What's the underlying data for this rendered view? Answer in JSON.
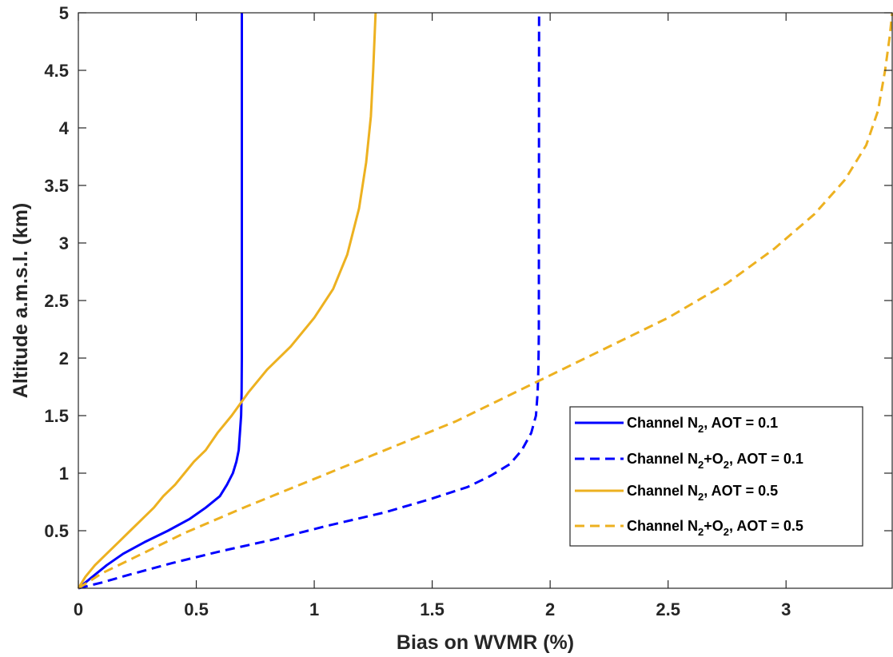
{
  "chart_data": {
    "type": "line",
    "title": "",
    "xlabel": "Bias on WVMR (%)",
    "ylabel": "Altitude a.m.s.l. (km)",
    "xlim": [
      0,
      3.45
    ],
    "ylim": [
      0,
      5
    ],
    "xticks": [
      0,
      0.5,
      1,
      1.5,
      2,
      2.5,
      3
    ],
    "xtick_labels": [
      "0",
      "0.5",
      "1",
      "1.5",
      "2",
      "2.5",
      "3"
    ],
    "yticks": [
      0.5,
      1,
      1.5,
      2,
      2.5,
      3,
      3.5,
      4,
      4.5,
      5
    ],
    "ytick_labels": [
      "0.5",
      "1",
      "1.5",
      "2",
      "2.5",
      "3",
      "3.5",
      "4",
      "4.5",
      "5"
    ],
    "grid": false,
    "legend_position": "lower-right",
    "series": [
      {
        "label_parts": {
          "prefix": "Channel N",
          "sub1": "2",
          "middle": "",
          "sub2": "",
          "suffix": ", AOT = 0.1"
        },
        "color": "#0000ff",
        "dash": "solid",
        "points": [
          [
            0.0,
            0.0
          ],
          [
            0.06,
            0.1
          ],
          [
            0.12,
            0.2
          ],
          [
            0.19,
            0.3
          ],
          [
            0.28,
            0.4
          ],
          [
            0.38,
            0.5
          ],
          [
            0.47,
            0.6
          ],
          [
            0.54,
            0.7
          ],
          [
            0.6,
            0.8
          ],
          [
            0.63,
            0.9
          ],
          [
            0.655,
            1.0
          ],
          [
            0.67,
            1.1
          ],
          [
            0.68,
            1.2
          ],
          [
            0.685,
            1.35
          ],
          [
            0.69,
            1.5
          ],
          [
            0.692,
            1.7
          ],
          [
            0.693,
            2.0
          ],
          [
            0.693,
            5.0
          ]
        ]
      },
      {
        "label_parts": {
          "prefix": "Channel N",
          "sub1": "2",
          "middle": "+O",
          "sub2": "2",
          "suffix": ", AOT = 0.1"
        },
        "color": "#0000ff",
        "dash": "dashed",
        "points": [
          [
            0.0,
            0.0
          ],
          [
            0.1,
            0.05
          ],
          [
            0.22,
            0.12
          ],
          [
            0.4,
            0.22
          ],
          [
            0.6,
            0.32
          ],
          [
            0.82,
            0.42
          ],
          [
            1.05,
            0.54
          ],
          [
            1.3,
            0.66
          ],
          [
            1.5,
            0.78
          ],
          [
            1.65,
            0.88
          ],
          [
            1.75,
            0.98
          ],
          [
            1.83,
            1.08
          ],
          [
            1.88,
            1.2
          ],
          [
            1.92,
            1.35
          ],
          [
            1.94,
            1.5
          ],
          [
            1.947,
            1.7
          ],
          [
            1.95,
            1.9
          ],
          [
            1.952,
            2.2
          ],
          [
            1.953,
            5.0
          ]
        ]
      },
      {
        "label_parts": {
          "prefix": "Channel N",
          "sub1": "2",
          "middle": "",
          "sub2": "",
          "suffix": ", AOT = 0.5"
        },
        "color": "#edb120",
        "dash": "solid",
        "points": [
          [
            0.0,
            0.0
          ],
          [
            0.03,
            0.1
          ],
          [
            0.07,
            0.2
          ],
          [
            0.12,
            0.3
          ],
          [
            0.17,
            0.4
          ],
          [
            0.22,
            0.5
          ],
          [
            0.27,
            0.6
          ],
          [
            0.32,
            0.7
          ],
          [
            0.36,
            0.8
          ],
          [
            0.41,
            0.9
          ],
          [
            0.45,
            1.0
          ],
          [
            0.49,
            1.1
          ],
          [
            0.54,
            1.2
          ],
          [
            0.59,
            1.35
          ],
          [
            0.65,
            1.5
          ],
          [
            0.72,
            1.7
          ],
          [
            0.8,
            1.9
          ],
          [
            0.9,
            2.1
          ],
          [
            1.0,
            2.35
          ],
          [
            1.08,
            2.6
          ],
          [
            1.14,
            2.9
          ],
          [
            1.19,
            3.3
          ],
          [
            1.22,
            3.7
          ],
          [
            1.24,
            4.1
          ],
          [
            1.25,
            4.5
          ],
          [
            1.26,
            5.0
          ]
        ]
      },
      {
        "label_parts": {
          "prefix": "Channel N",
          "sub1": "2",
          "middle": "+O",
          "sub2": "2",
          "suffix": ", AOT = 0.5"
        },
        "color": "#edb120",
        "dash": "dashed",
        "points": [
          [
            0.0,
            0.0
          ],
          [
            0.1,
            0.13
          ],
          [
            0.25,
            0.28
          ],
          [
            0.45,
            0.48
          ],
          [
            0.7,
            0.7
          ],
          [
            1.0,
            0.95
          ],
          [
            1.3,
            1.2
          ],
          [
            1.6,
            1.45
          ],
          [
            1.9,
            1.75
          ],
          [
            2.2,
            2.05
          ],
          [
            2.5,
            2.35
          ],
          [
            2.75,
            2.65
          ],
          [
            2.95,
            2.95
          ],
          [
            3.12,
            3.25
          ],
          [
            3.25,
            3.55
          ],
          [
            3.34,
            3.85
          ],
          [
            3.39,
            4.15
          ],
          [
            3.42,
            4.5
          ],
          [
            3.44,
            4.8
          ],
          [
            3.45,
            5.0
          ]
        ]
      }
    ]
  }
}
